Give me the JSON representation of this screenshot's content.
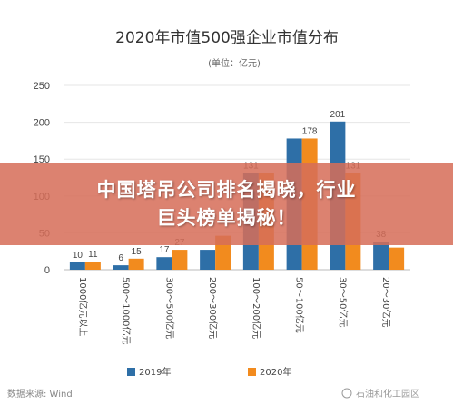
{
  "chart_data": {
    "type": "bar",
    "title": "2020年市值500强企业市值分布",
    "unit": "(单位：亿元)",
    "categories": [
      "1000亿元以上",
      "500～1000亿元",
      "300～500亿元",
      "200～300亿元",
      "100～200亿元",
      "50～100亿元",
      "30～50亿元",
      "20～30亿元"
    ],
    "series": [
      {
        "name": "2019年",
        "color": "#2e6fa7",
        "values": [
          10,
          6,
          17,
          27,
          131,
          178,
          201,
          38
        ]
      },
      {
        "name": "2020年",
        "color": "#f28b1e",
        "values": [
          11,
          15,
          27,
          46,
          131,
          178,
          131,
          30
        ]
      }
    ],
    "data_labels": [
      [
        "10",
        "6",
        "17",
        "",
        "131",
        "",
        "201",
        "38"
      ],
      [
        "11",
        "15",
        "27",
        "",
        "",
        "178",
        "131",
        ""
      ]
    ],
    "ylim": [
      0,
      250
    ],
    "yticks": [
      0,
      50,
      100,
      150,
      200,
      250
    ],
    "grid": true,
    "legend_position": "bottom"
  },
  "source": "数据来源: Wind",
  "watermark": "石油和化工园区",
  "banner": {
    "line1": "中国塔吊公司排名揭晓，行业",
    "line2": "巨头榜单揭秘！"
  }
}
